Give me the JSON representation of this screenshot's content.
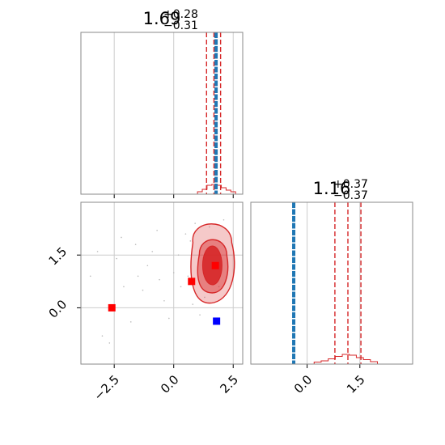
{
  "chart_data": {
    "type": "corner",
    "grid": true,
    "panels": [
      {
        "id": "hist-param1",
        "type": "histogram",
        "title": {
          "median": "1.69",
          "plus": "+0.28",
          "minus": "−0.31"
        },
        "xlim": [
          -3.9,
          2.9
        ],
        "quantiles": [
          1.38,
          1.69,
          1.97
        ],
        "quantile_color": "#d62728",
        "truth": {
          "value": 1.78,
          "color": "#1f77b4"
        },
        "histogram": {
          "color": "#d62728",
          "bins": [
            1.0,
            1.2,
            1.4,
            1.6,
            1.8,
            2.0,
            2.2,
            2.4,
            2.6
          ],
          "counts": [
            0.1,
            0.4,
            0.9,
            1.0,
            0.9,
            0.6,
            0.3,
            0.1
          ]
        }
      },
      {
        "id": "scatter-param1-param2",
        "type": "contour",
        "xlim": [
          -3.9,
          2.9
        ],
        "ylim": [
          -1.6,
          3.0
        ],
        "xticks": [
          {
            "value": -2.5,
            "label": "−2.5"
          },
          {
            "value": 0.0,
            "label": "0.0"
          },
          {
            "value": 2.5,
            "label": "2.5"
          }
        ],
        "yticks": [
          {
            "value": 0.0,
            "label": "0.0"
          },
          {
            "value": 1.5,
            "label": "1.5"
          }
        ],
        "contour_color": "#d62728",
        "samples": [
          [
            -2.2,
            2.0
          ],
          [
            -1.6,
            1.8
          ],
          [
            -1.1,
            1.2
          ],
          [
            -0.6,
            0.8
          ],
          [
            0.2,
            1.5
          ],
          [
            0.6,
            0.9
          ],
          [
            0.9,
            2.4
          ],
          [
            1.3,
            0.3
          ],
          [
            -0.4,
            0.2
          ],
          [
            -1.3,
            0.5
          ],
          [
            -2.4,
            1.4
          ],
          [
            0.7,
            1.9
          ],
          [
            1.1,
            -0.2
          ],
          [
            -1.8,
            -0.4
          ],
          [
            0.3,
            0.6
          ],
          [
            -0.9,
            1.6
          ],
          [
            1.5,
            2.3
          ],
          [
            2.1,
            2.5
          ],
          [
            -3.2,
            1.6
          ],
          [
            -3.0,
            -0.8
          ],
          [
            -2.7,
            -1.0
          ],
          [
            -0.2,
            -0.3
          ],
          [
            0.5,
            2.1
          ],
          [
            -1.5,
            0.9
          ],
          [
            0.0,
            1.0
          ],
          [
            1.9,
            0.6
          ],
          [
            -2.1,
            0.6
          ],
          [
            0.8,
            0.1
          ],
          [
            -0.7,
            2.2
          ],
          [
            -3.5,
            0.9
          ]
        ],
        "markers": [
          {
            "x": -2.6,
            "y": 0.0,
            "color": "#ff0000"
          },
          {
            "x": 0.75,
            "y": 0.75,
            "color": "#ff0000"
          },
          {
            "x": 1.75,
            "y": 1.2,
            "color": "#ff0000"
          },
          {
            "x": 1.8,
            "y": -0.38,
            "color": "#0000ff"
          }
        ]
      },
      {
        "id": "hist-param2",
        "type": "histogram",
        "title": {
          "median": "1.16",
          "plus": "+0.37",
          "minus": "−0.37"
        },
        "xlim": [
          -1.6,
          3.0
        ],
        "xticks": [
          {
            "value": 0.0,
            "label": "0.0"
          },
          {
            "value": 1.5,
            "label": "1.5"
          }
        ],
        "quantiles": [
          0.79,
          1.16,
          1.53
        ],
        "quantile_color": "#d62728",
        "truth": {
          "value": -0.38,
          "color": "#1f77b4"
        },
        "histogram": {
          "color": "#d62728",
          "bins": [
            0.2,
            0.4,
            0.6,
            0.8,
            1.0,
            1.2,
            1.4,
            1.6,
            1.8,
            2.0
          ],
          "counts": [
            0.05,
            0.2,
            0.45,
            0.75,
            1.0,
            0.9,
            0.6,
            0.35,
            0.1
          ]
        }
      }
    ]
  }
}
